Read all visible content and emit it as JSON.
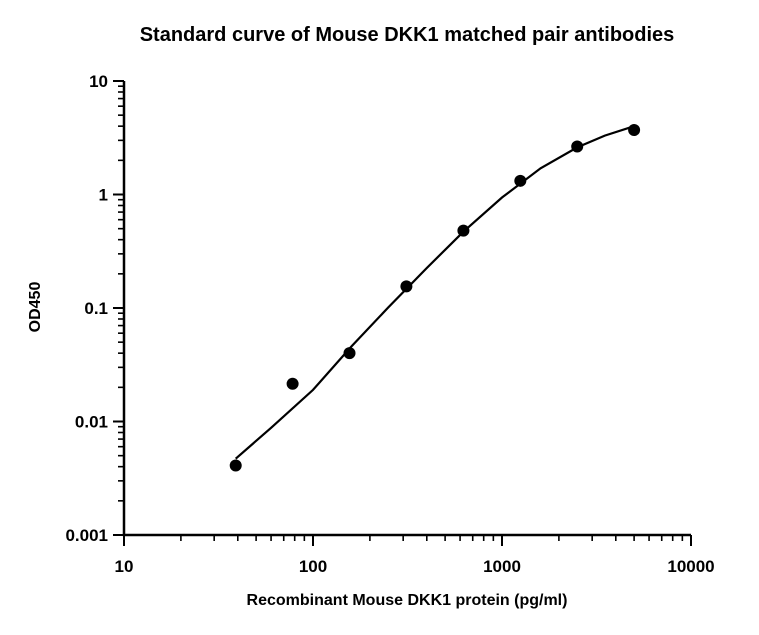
{
  "chart_data": {
    "type": "scatter",
    "title": "Standard curve of Mouse DKK1 matched pair antibodies",
    "xlabel": "Recombinant Mouse DKK1 protein (pg/ml)",
    "ylabel": "OD450",
    "x_scale": "log",
    "y_scale": "log",
    "xlim": [
      10,
      10000
    ],
    "ylim": [
      0.001,
      10
    ],
    "x_ticks": [
      "10",
      "100",
      "1000",
      "10000"
    ],
    "y_ticks": [
      "0.001",
      "0.01",
      "0.1",
      "1",
      "10"
    ],
    "grid": false,
    "legend": "none",
    "series": [
      {
        "points": [
          {
            "x": 39,
            "y": 0.0041
          },
          {
            "x": 78,
            "y": 0.0215
          },
          {
            "x": 156,
            "y": 0.04
          },
          {
            "x": 312,
            "y": 0.155
          },
          {
            "x": 625,
            "y": 0.48
          },
          {
            "x": 1250,
            "y": 1.32
          },
          {
            "x": 2500,
            "y": 2.65
          },
          {
            "x": 5000,
            "y": 3.7
          }
        ],
        "fit_curve": [
          {
            "x": 39,
            "y": 0.0047
          },
          {
            "x": 60,
            "y": 0.0088
          },
          {
            "x": 100,
            "y": 0.019
          },
          {
            "x": 160,
            "y": 0.046
          },
          {
            "x": 250,
            "y": 0.101
          },
          {
            "x": 400,
            "y": 0.225
          },
          {
            "x": 625,
            "y": 0.47
          },
          {
            "x": 1000,
            "y": 0.94
          },
          {
            "x": 1600,
            "y": 1.7
          },
          {
            "x": 2500,
            "y": 2.6
          },
          {
            "x": 3500,
            "y": 3.3
          },
          {
            "x": 5000,
            "y": 4.0
          }
        ]
      }
    ],
    "colors": {
      "points": "#000000",
      "line": "#000000",
      "axes": "#000000"
    }
  }
}
